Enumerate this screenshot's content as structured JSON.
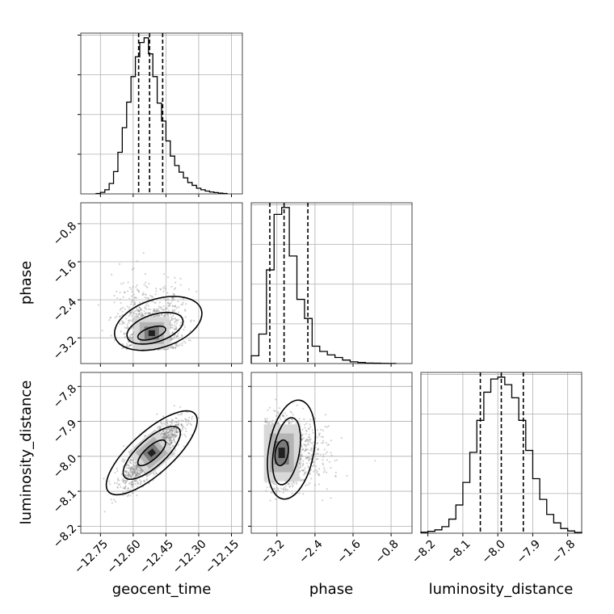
{
  "chart_data": [
    {
      "panel": "geocent_time-marginal",
      "type": "histogram",
      "parameter": "geocent_time",
      "xlim": [
        -12.84,
        -12.1
      ],
      "quantile_lines": [
        -12.575,
        -12.525,
        -12.465
      ],
      "bin_edges": [
        -12.77,
        -12.75,
        -12.73,
        -12.71,
        -12.69,
        -12.67,
        -12.65,
        -12.63,
        -12.61,
        -12.59,
        -12.57,
        -12.55,
        -12.53,
        -12.51,
        -12.49,
        -12.47,
        -12.45,
        -12.43,
        -12.41,
        -12.39,
        -12.37,
        -12.35,
        -12.33,
        -12.31,
        -12.29,
        -12.27,
        -12.25,
        -12.23,
        -12.21,
        -12.19,
        -12.17
      ],
      "counts": [
        0.2,
        0.8,
        2.2,
        5.5,
        11.8,
        22.0,
        35.0,
        48.5,
        62.0,
        72.5,
        80.0,
        82.5,
        74.0,
        62.0,
        48.0,
        38.5,
        28.0,
        20.0,
        15.0,
        11.5,
        8.5,
        6.0,
        4.5,
        3.0,
        2.2,
        1.5,
        1.0,
        0.7,
        0.4,
        0.2
      ],
      "grid": true
    },
    {
      "panel": "phase-marginal",
      "type": "histogram",
      "parameter": "phase",
      "xlim": [
        -3.74,
        -0.36
      ],
      "quantile_lines": [
        -3.35,
        -3.05,
        -2.55
      ],
      "bin_edges": [
        -3.74,
        -3.58,
        -3.42,
        -3.26,
        -3.1,
        -2.94,
        -2.78,
        -2.62,
        -2.46,
        -2.3,
        -2.14,
        -1.98,
        -1.82,
        -1.66,
        -1.5,
        -1.34,
        -1.18,
        -1.02,
        -0.86,
        -0.7
      ],
      "counts": [
        4.5,
        17.0,
        54.0,
        86.0,
        90.0,
        62.0,
        37.0,
        26.0,
        10.0,
        7.0,
        5.0,
        3.5,
        2.0,
        1.0,
        0.6,
        0.3,
        0.2,
        0.1,
        0.05
      ],
      "grid": true
    },
    {
      "panel": "luminosity_distance-marginal",
      "type": "histogram",
      "parameter": "luminosity_distance",
      "xlim": [
        -8.22,
        -7.76
      ],
      "quantile_lines": [
        -8.05,
        -7.99,
        -7.927
      ],
      "bin_edges": [
        -8.22,
        -8.2,
        -8.18,
        -8.16,
        -8.14,
        -8.12,
        -8.1,
        -8.08,
        -8.06,
        -8.04,
        -8.02,
        -8.0,
        -7.98,
        -7.96,
        -7.94,
        -7.92,
        -7.9,
        -7.88,
        -7.86,
        -7.84,
        -7.82,
        -7.8,
        -7.78,
        -7.76
      ],
      "counts": [
        0.5,
        1.0,
        1.8,
        3.5,
        7.5,
        15.0,
        27.0,
        43.0,
        60.0,
        75.0,
        82.0,
        83.0,
        79.0,
        72.0,
        60.0,
        44.0,
        29.0,
        18.0,
        10.0,
        5.5,
        2.5,
        1.2,
        0.4
      ],
      "grid": true
    },
    {
      "panel": "phase-vs-geocent_time",
      "type": "2d-histogram-contour",
      "x_parameter": "geocent_time",
      "y_parameter": "phase",
      "xlim": [
        -12.84,
        -12.1
      ],
      "ylim": [
        -3.74,
        -0.36
      ],
      "center": [
        -12.515,
        -3.1
      ],
      "sigma": [
        0.065,
        0.45
      ],
      "correlation": 0.5,
      "grid": true
    },
    {
      "panel": "luminosity_distance-vs-geocent_time",
      "type": "2d-histogram-contour",
      "x_parameter": "geocent_time",
      "y_parameter": "luminosity_distance",
      "xlim": [
        -12.84,
        -12.1
      ],
      "ylim": [
        -8.22,
        -7.76
      ],
      "center": [
        -12.515,
        -7.99
      ],
      "sigma": [
        0.065,
        0.047
      ],
      "correlation": 0.82,
      "grid": true
    },
    {
      "panel": "luminosity_distance-vs-phase",
      "type": "2d-histogram-contour",
      "x_parameter": "phase",
      "y_parameter": "luminosity_distance",
      "xlim": [
        -3.74,
        -0.36
      ],
      "ylim": [
        -8.22,
        -7.76
      ],
      "center": [
        -3.1,
        -7.99
      ],
      "sigma": [
        0.45,
        0.047
      ],
      "correlation": 0.1,
      "grid": true
    }
  ],
  "axes": {
    "geocent_time": {
      "label": "geocent_time",
      "ticks": [
        -12.75,
        -12.6,
        -12.45,
        -12.3,
        -12.15
      ],
      "tick_labels": [
        "−12.75",
        "−12.60",
        "−12.45",
        "−12.30",
        "−12.15"
      ]
    },
    "phase": {
      "label": "phase",
      "ticks": [
        -3.2,
        -2.4,
        -1.6,
        -0.8
      ],
      "tick_labels": [
        "−3.2",
        "−2.4",
        "−1.6",
        "−0.8"
      ]
    },
    "luminosity_distance": {
      "label": "luminosity_distance",
      "ticks": [
        -8.2,
        -8.1,
        -8.0,
        -7.9,
        -7.8
      ],
      "tick_labels": [
        "−8.2",
        "−8.1",
        "−8.0",
        "−7.9",
        "−7.8"
      ]
    }
  },
  "colors": {
    "ink": "#000000",
    "grid": "#b0b0b0",
    "points": "#808080",
    "background": "#ffffff"
  }
}
